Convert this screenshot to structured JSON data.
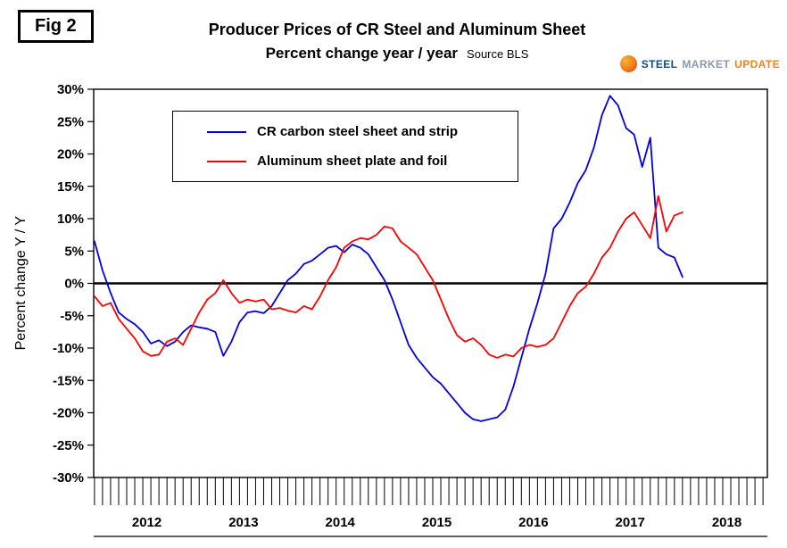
{
  "figure_label": "Fig 2",
  "title_line1": "Producer Prices of CR Steel and Aluminum Sheet",
  "title_line2": "Percent change year / year",
  "source": "Source BLS",
  "logo": {
    "word1": "STEEL",
    "word2": "MARKET",
    "word3": "UPDATE",
    "color1": "#0F4C81",
    "color2": "#8A99A8",
    "color3": "#F5821F"
  },
  "chart_data": {
    "type": "line",
    "title": "Producer Prices of CR Steel and Aluminum Sheet",
    "subtitle": "Percent change year / year",
    "source": "Source BLS",
    "xlabel": "",
    "ylabel": "Percent change Y / Y",
    "ylim": [
      -30,
      30
    ],
    "ytick_step": 5,
    "ytick_labels": [
      "30%",
      "25%",
      "20%",
      "15%",
      "10%",
      "5%",
      "0%",
      "-5%",
      "-10%",
      "-15%",
      "-20%",
      "-25%",
      "-30%"
    ],
    "x_year_labels": [
      "2012",
      "2013",
      "2014",
      "2015",
      "2016",
      "2017",
      "2018"
    ],
    "x_frequency": "monthly",
    "start_year": 2011,
    "start_month": 12,
    "grid": false,
    "zero_line": true,
    "legend_position": "top-left-inside",
    "series": [
      {
        "name": "CR carbon steel sheet and strip",
        "color": "#0000E6",
        "values": [
          6.5,
          2.0,
          -1.5,
          -4.5,
          -5.5,
          -6.3,
          -7.5,
          -9.3,
          -8.8,
          -9.7,
          -9.0,
          -7.5,
          -6.5,
          -6.8,
          -7.0,
          -7.5,
          -11.2,
          -9.0,
          -6.0,
          -4.5,
          -4.3,
          -4.6,
          -3.5,
          -1.5,
          0.5,
          1.5,
          3.0,
          3.5,
          4.5,
          5.5,
          5.8,
          4.8,
          6.0,
          5.5,
          4.5,
          2.5,
          0.5,
          -2.5,
          -6.0,
          -9.5,
          -11.5,
          -13.0,
          -14.5,
          -15.5,
          -17.0,
          -18.5,
          -20.0,
          -21.0,
          -21.3,
          -21.0,
          -20.7,
          -19.5,
          -16.0,
          -11.5,
          -7.0,
          -3.0,
          1.5,
          8.5,
          10.0,
          12.5,
          15.5,
          17.5,
          21.0,
          26.0,
          29.0,
          27.5,
          24.0,
          23.0,
          18.0,
          22.5,
          5.5,
          4.5,
          4.0,
          1.0
        ]
      },
      {
        "name": "Aluminum sheet plate and foil",
        "color": "#FF0000",
        "values": [
          -2.0,
          -3.5,
          -3.0,
          -5.5,
          -7.0,
          -8.5,
          -10.5,
          -11.2,
          -11.0,
          -9.0,
          -8.5,
          -9.5,
          -7.0,
          -4.5,
          -2.5,
          -1.5,
          0.5,
          -1.5,
          -3.0,
          -2.5,
          -2.8,
          -2.5,
          -4.0,
          -3.8,
          -4.2,
          -4.5,
          -3.5,
          -4.0,
          -2.0,
          0.5,
          2.5,
          5.5,
          6.5,
          7.0,
          6.8,
          7.5,
          8.8,
          8.5,
          6.5,
          5.5,
          4.5,
          2.5,
          0.5,
          -2.5,
          -5.5,
          -8.0,
          -9.0,
          -8.5,
          -9.5,
          -11.0,
          -11.5,
          -11.0,
          -11.3,
          -10.0,
          -9.5,
          -9.8,
          -9.5,
          -8.5,
          -6.0,
          -3.5,
          -1.5,
          -0.5,
          1.5,
          4.0,
          5.5,
          8.0,
          10.0,
          11.0,
          9.0,
          7.0,
          13.5,
          8.0,
          10.5,
          11.0
        ]
      }
    ]
  }
}
